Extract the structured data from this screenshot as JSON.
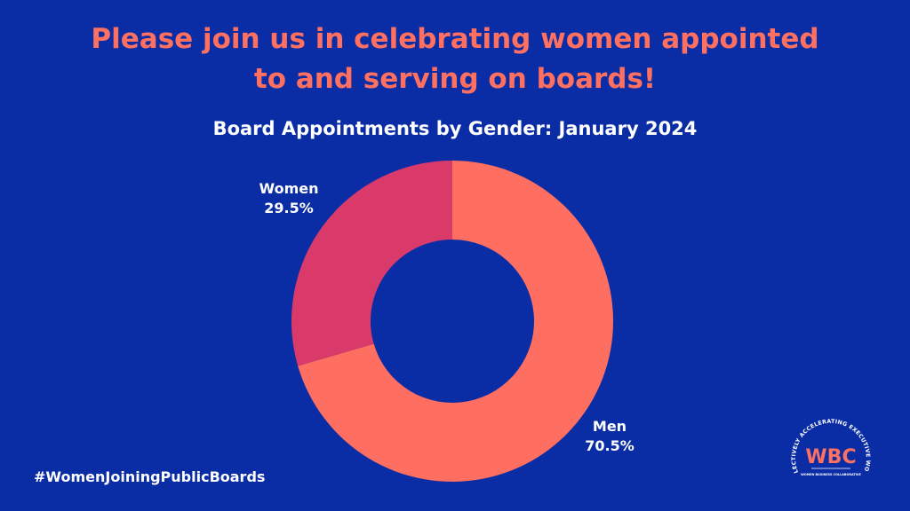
{
  "headline": {
    "line1": "Please join us in celebrating women appointed",
    "line2": "to and serving on boards!"
  },
  "hashtag": "#WomenJoiningPublicBoards",
  "logo": {
    "acronym": "WBC",
    "arc_text": "COLLECTIVELY ACCELERATING EXECUTIVE WOMEN",
    "subtitle": "WOMEN BUSINESS COLLABORATIVE"
  },
  "colors": {
    "background": "#0A2DA6",
    "accent": "#FF7060",
    "men": "#FF6F61",
    "women": "#D93A6A"
  },
  "chart_data": {
    "type": "pie",
    "variant": "donut",
    "title": "Board Appointments by Gender: January 2024",
    "slices": [
      {
        "name": "Men",
        "value": 70.5,
        "label": "70.5%",
        "color": "#FF6F61"
      },
      {
        "name": "Women",
        "value": 29.5,
        "label": "29.5%",
        "color": "#D93A6A"
      }
    ]
  }
}
